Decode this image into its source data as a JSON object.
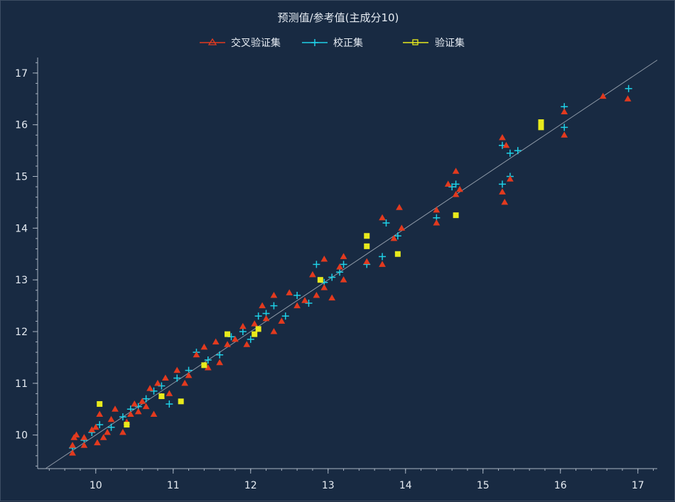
{
  "chart_data": {
    "type": "scatter",
    "title": "预测值/参考值(主成分10)",
    "xlabel": "",
    "ylabel": "",
    "xlim": [
      9.25,
      17.25
    ],
    "ylim": [
      9.35,
      17.3
    ],
    "x_ticks": [
      10,
      11,
      12,
      13,
      14,
      15,
      16,
      17
    ],
    "y_ticks": [
      10,
      11,
      12,
      13,
      14,
      15,
      16,
      17
    ],
    "reference_line": "y = x",
    "grid": false,
    "legend_position": "top-center",
    "series": [
      {
        "name": "交叉验证集",
        "marker": "triangle",
        "color": "#e23a1f",
        "points": [
          [
            9.7,
            9.65
          ],
          [
            9.7,
            9.8
          ],
          [
            9.72,
            9.95
          ],
          [
            9.75,
            10.0
          ],
          [
            9.85,
            9.8
          ],
          [
            9.85,
            9.95
          ],
          [
            9.95,
            10.1
          ],
          [
            10.0,
            10.15
          ],
          [
            10.02,
            9.85
          ],
          [
            10.05,
            10.4
          ],
          [
            10.1,
            9.95
          ],
          [
            10.15,
            10.05
          ],
          [
            10.2,
            10.3
          ],
          [
            10.25,
            10.5
          ],
          [
            10.35,
            10.05
          ],
          [
            10.4,
            10.25
          ],
          [
            10.45,
            10.4
          ],
          [
            10.5,
            10.6
          ],
          [
            10.55,
            10.45
          ],
          [
            10.6,
            10.65
          ],
          [
            10.65,
            10.55
          ],
          [
            10.7,
            10.9
          ],
          [
            10.75,
            10.4
          ],
          [
            10.8,
            11.0
          ],
          [
            10.85,
            10.75
          ],
          [
            10.9,
            11.1
          ],
          [
            10.95,
            10.8
          ],
          [
            11.05,
            11.25
          ],
          [
            11.15,
            11.0
          ],
          [
            11.2,
            11.15
          ],
          [
            11.3,
            11.55
          ],
          [
            11.4,
            11.7
          ],
          [
            11.45,
            11.3
          ],
          [
            11.55,
            11.8
          ],
          [
            11.6,
            11.4
          ],
          [
            11.7,
            11.75
          ],
          [
            11.8,
            11.85
          ],
          [
            11.9,
            12.1
          ],
          [
            11.95,
            11.75
          ],
          [
            12.05,
            12.15
          ],
          [
            12.15,
            12.5
          ],
          [
            12.2,
            12.25
          ],
          [
            12.3,
            12.7
          ],
          [
            12.3,
            12.0
          ],
          [
            12.4,
            12.2
          ],
          [
            12.5,
            12.75
          ],
          [
            12.6,
            12.5
          ],
          [
            12.7,
            12.6
          ],
          [
            12.8,
            13.1
          ],
          [
            12.85,
            12.7
          ],
          [
            12.95,
            13.4
          ],
          [
            12.95,
            12.85
          ],
          [
            13.05,
            12.65
          ],
          [
            13.15,
            13.25
          ],
          [
            13.2,
            13.45
          ],
          [
            13.2,
            13.0
          ],
          [
            13.5,
            13.35
          ],
          [
            13.7,
            13.3
          ],
          [
            13.7,
            14.2
          ],
          [
            13.85,
            13.8
          ],
          [
            13.92,
            14.4
          ],
          [
            13.95,
            14.0
          ],
          [
            14.4,
            14.1
          ],
          [
            14.4,
            14.35
          ],
          [
            14.55,
            14.85
          ],
          [
            14.65,
            15.1
          ],
          [
            14.65,
            14.65
          ],
          [
            14.7,
            14.75
          ],
          [
            15.25,
            15.75
          ],
          [
            15.3,
            15.6
          ],
          [
            15.25,
            14.7
          ],
          [
            15.28,
            14.5
          ],
          [
            15.35,
            14.95
          ],
          [
            16.05,
            16.25
          ],
          [
            16.05,
            15.8
          ],
          [
            16.55,
            16.55
          ],
          [
            16.87,
            16.5
          ]
        ]
      },
      {
        "name": "校正集",
        "marker": "plus",
        "color": "#1fd0e6",
        "points": [
          [
            9.7,
            9.75
          ],
          [
            9.85,
            9.9
          ],
          [
            9.95,
            10.05
          ],
          [
            10.05,
            10.2
          ],
          [
            10.2,
            10.15
          ],
          [
            10.35,
            10.35
          ],
          [
            10.45,
            10.5
          ],
          [
            10.55,
            10.55
          ],
          [
            10.65,
            10.7
          ],
          [
            10.75,
            10.85
          ],
          [
            10.85,
            10.95
          ],
          [
            10.95,
            10.6
          ],
          [
            11.05,
            11.1
          ],
          [
            11.2,
            11.25
          ],
          [
            11.3,
            11.6
          ],
          [
            11.45,
            11.45
          ],
          [
            11.6,
            11.55
          ],
          [
            11.75,
            11.9
          ],
          [
            11.9,
            12.0
          ],
          [
            12.0,
            11.85
          ],
          [
            12.1,
            12.3
          ],
          [
            12.2,
            12.35
          ],
          [
            12.3,
            12.5
          ],
          [
            12.45,
            12.3
          ],
          [
            12.6,
            12.7
          ],
          [
            12.75,
            12.55
          ],
          [
            12.85,
            13.3
          ],
          [
            12.95,
            12.95
          ],
          [
            13.05,
            13.05
          ],
          [
            13.15,
            13.15
          ],
          [
            13.2,
            13.3
          ],
          [
            13.5,
            13.3
          ],
          [
            13.7,
            13.45
          ],
          [
            13.75,
            14.1
          ],
          [
            13.9,
            13.85
          ],
          [
            14.4,
            14.2
          ],
          [
            14.6,
            14.8
          ],
          [
            14.65,
            14.85
          ],
          [
            15.25,
            14.85
          ],
          [
            15.25,
            15.6
          ],
          [
            15.35,
            15.45
          ],
          [
            15.35,
            15.0
          ],
          [
            15.45,
            15.5
          ],
          [
            16.05,
            16.35
          ],
          [
            16.05,
            15.95
          ],
          [
            16.88,
            16.7
          ]
        ]
      },
      {
        "name": "验证集",
        "marker": "square",
        "color": "#e8ea1c",
        "points": [
          [
            10.05,
            10.6
          ],
          [
            10.4,
            10.2
          ],
          [
            10.85,
            10.75
          ],
          [
            11.1,
            10.65
          ],
          [
            11.4,
            11.35
          ],
          [
            11.7,
            11.95
          ],
          [
            12.05,
            11.95
          ],
          [
            12.1,
            12.05
          ],
          [
            12.9,
            13.0
          ],
          [
            13.5,
            13.85
          ],
          [
            13.5,
            13.65
          ],
          [
            13.9,
            13.5
          ],
          [
            14.65,
            14.25
          ],
          [
            15.75,
            16.05
          ],
          [
            15.75,
            15.95
          ]
        ]
      }
    ]
  }
}
